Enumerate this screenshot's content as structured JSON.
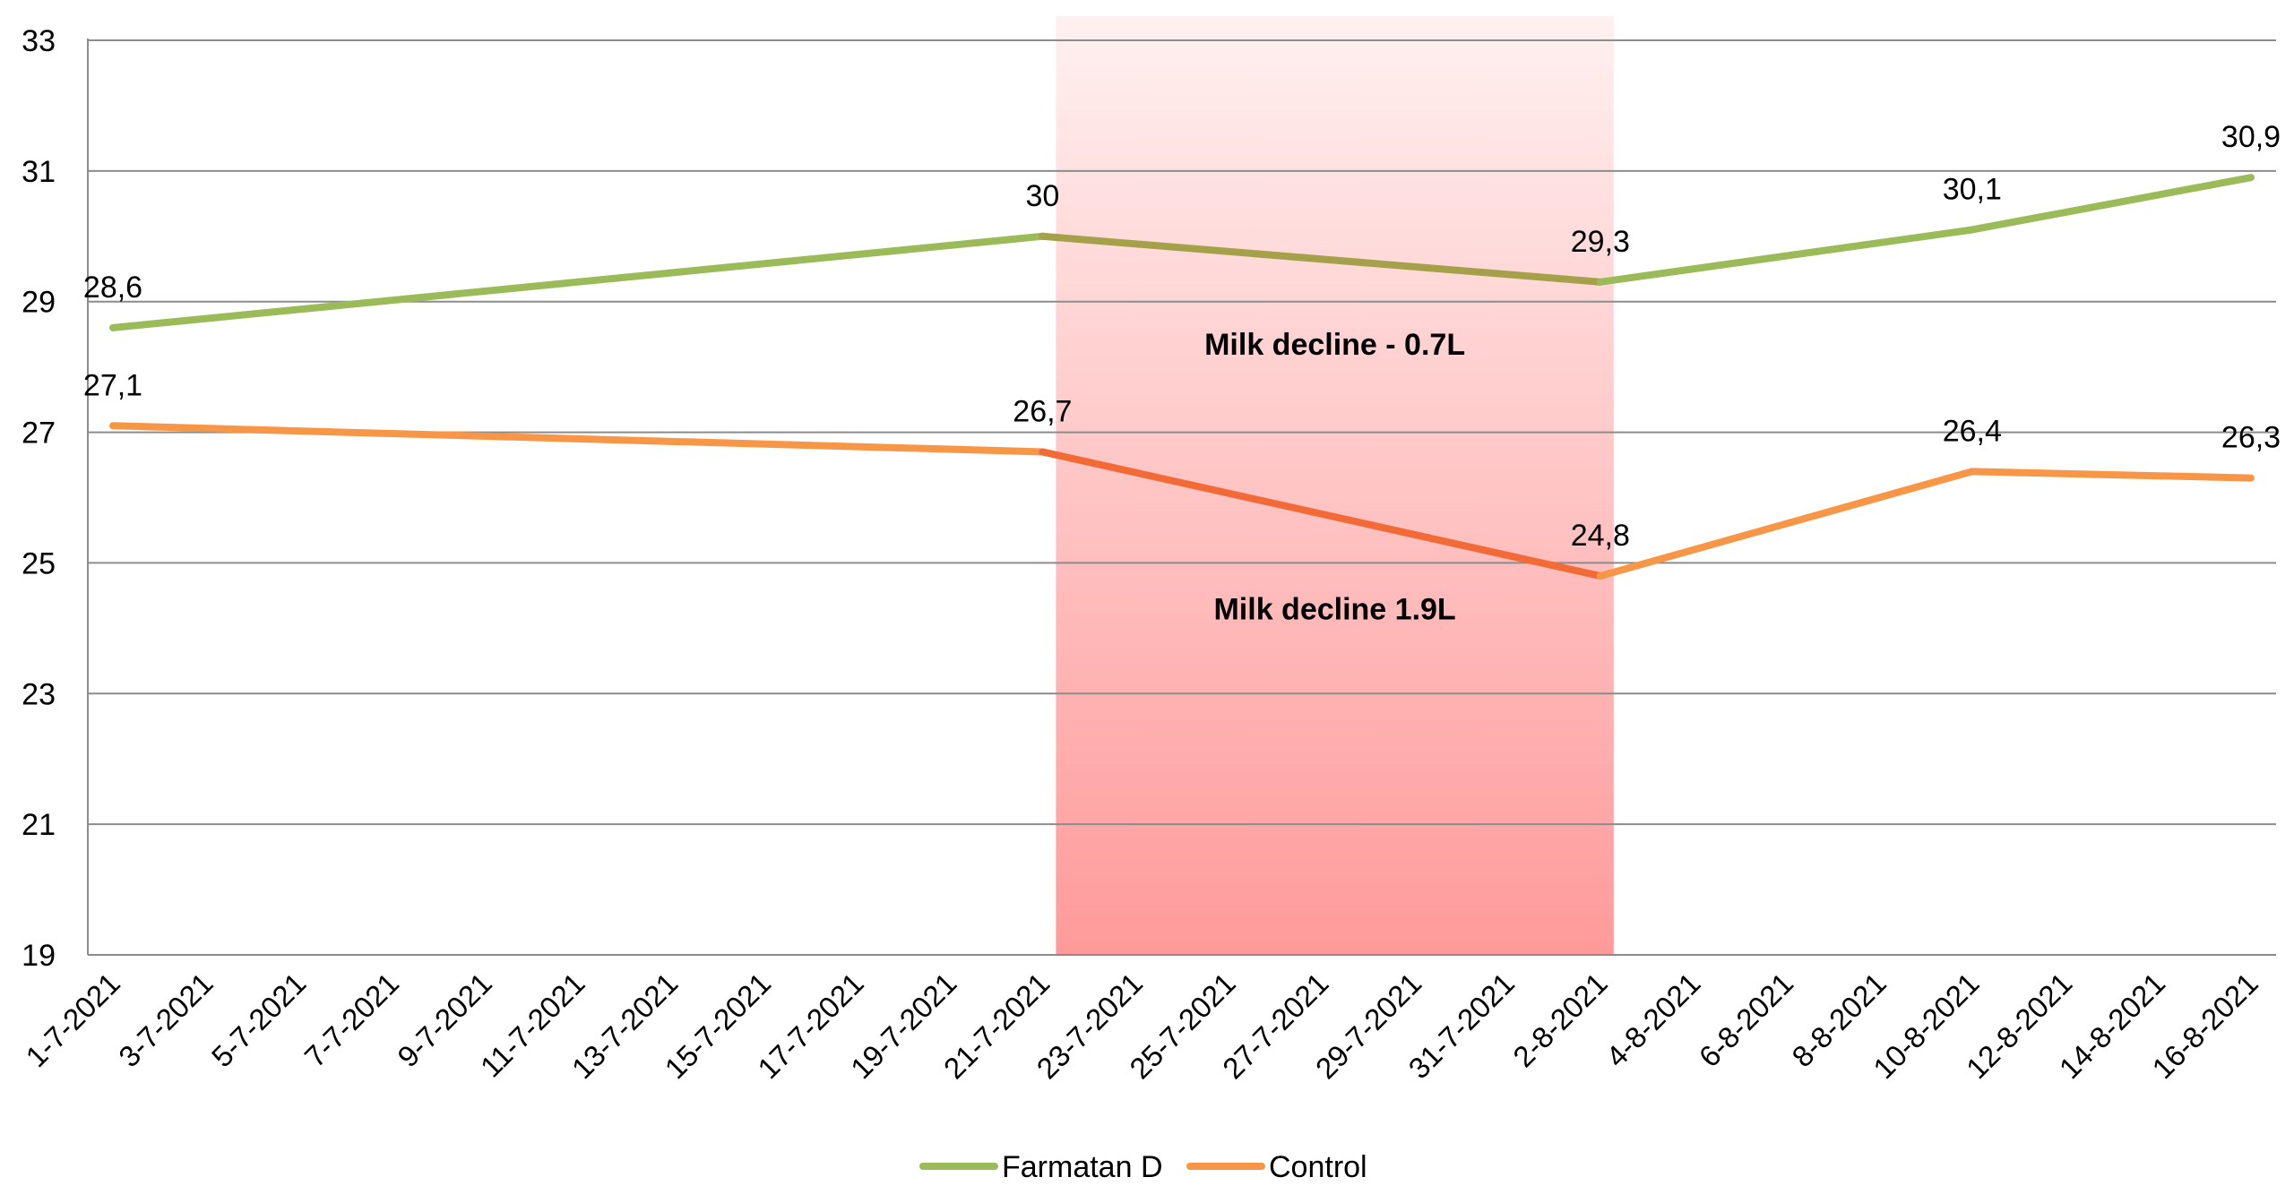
{
  "chart_data": {
    "type": "line",
    "categories": [
      "1-7-2021",
      "3-7-2021",
      "5-7-2021",
      "7-7-2021",
      "9-7-2021",
      "11-7-2021",
      "13-7-2021",
      "15-7-2021",
      "17-7-2021",
      "19-7-2021",
      "21-7-2021",
      "23-7-2021",
      "25-7-2021",
      "27-7-2021",
      "29-7-2021",
      "31-7-2021",
      "2-8-2021",
      "4-8-2021",
      "6-8-2021",
      "8-8-2021",
      "10-8-2021",
      "12-8-2021",
      "14-8-2021",
      "16-8-2021"
    ],
    "series": [
      {
        "name": "Farmatan D",
        "color": "#9bbb59",
        "highlight_color": "#a5a04a",
        "points": [
          {
            "x": "1-7-2021",
            "y": 28.6,
            "label": "28,6"
          },
          {
            "x": "21-7-2021",
            "y": 30,
            "label": "30"
          },
          {
            "x": "2-8-2021",
            "y": 29.3,
            "label": "29,3"
          },
          {
            "x": "10-8-2021",
            "y": 30.1,
            "label": "30,1"
          },
          {
            "x": "16-8-2021",
            "y": 30.9,
            "label": "30,9"
          }
        ]
      },
      {
        "name": "Control",
        "color": "#f79646",
        "highlight_color": "#f26b36",
        "points": [
          {
            "x": "1-7-2021",
            "y": 27.1,
            "label": "27,1"
          },
          {
            "x": "21-7-2021",
            "y": 26.7,
            "label": "26,7"
          },
          {
            "x": "2-8-2021",
            "y": 24.8,
            "label": "24,8"
          },
          {
            "x": "10-8-2021",
            "y": 26.4,
            "label": "26,4"
          },
          {
            "x": "16-8-2021",
            "y": 26.3,
            "label": "26,3"
          }
        ]
      }
    ],
    "y_ticks": [
      "19",
      "21",
      "23",
      "25",
      "27",
      "29",
      "31",
      "33"
    ],
    "ylim": [
      19,
      33
    ],
    "grid": true,
    "highlight_range": {
      "start": "21-7-2021",
      "end": "2-8-2021",
      "color_top": "#fff0f0",
      "color_bottom": "#ff9a9a"
    },
    "annotations": [
      {
        "text": "Milk decline - 0.7L",
        "x": "27-7-2021",
        "y": 28.35
      },
      {
        "text": "Milk decline 1.9L",
        "x": "27-7-2021",
        "y": 24.3
      }
    ],
    "legend_position": "bottom-center",
    "title": "",
    "xlabel": "",
    "ylabel": ""
  }
}
